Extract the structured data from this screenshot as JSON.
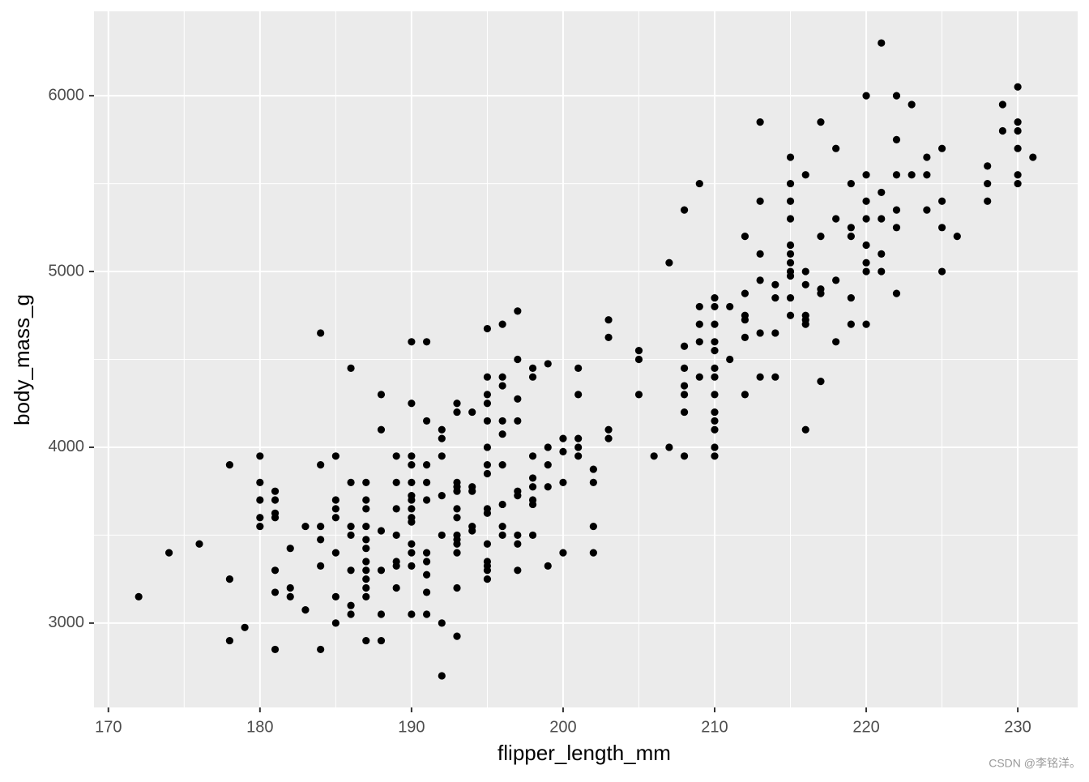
{
  "chart_data": {
    "type": "scatter",
    "x_label": "flipper_length_mm",
    "y_label": "body_mass_g",
    "xlim": [
      169.05,
      233.95
    ],
    "ylim": [
      2520,
      6480
    ],
    "xticks": [
      170,
      180,
      190,
      200,
      210,
      220,
      230
    ],
    "yticks": [
      3000,
      4000,
      5000,
      6000
    ],
    "grid": true,
    "color": "#000000",
    "panel_color": "#EBEBEB",
    "watermark": "CSDN @李铭洋。",
    "x": [
      172,
      174,
      176,
      178,
      178,
      178,
      179,
      180,
      180,
      180,
      180,
      180,
      181,
      181,
      181,
      181,
      181,
      181,
      181,
      182,
      182,
      182,
      183,
      183,
      184,
      184,
      184,
      184,
      184,
      184,
      185,
      185,
      185,
      185,
      185,
      185,
      185,
      186,
      186,
      186,
      186,
      186,
      186,
      186,
      187,
      187,
      187,
      187,
      187,
      187,
      187,
      187,
      187,
      187,
      187,
      187,
      188,
      188,
      188,
      188,
      188,
      188,
      189,
      189,
      189,
      189,
      189,
      189,
      189,
      190,
      190,
      190,
      190,
      190,
      190,
      190,
      190,
      190,
      190,
      190,
      190,
      190,
      190,
      191,
      191,
      191,
      191,
      191,
      191,
      191,
      191,
      191,
      191,
      192,
      192,
      192,
      192,
      192,
      192,
      192,
      193,
      193,
      193,
      193,
      193,
      193,
      193,
      193,
      193,
      193,
      193,
      193,
      193,
      194,
      194,
      194,
      194,
      194,
      195,
      195,
      195,
      195,
      195,
      195,
      195,
      195,
      195,
      195,
      195,
      195,
      195,
      195,
      195,
      196,
      196,
      196,
      196,
      196,
      196,
      196,
      196,
      196,
      197,
      197,
      197,
      197,
      197,
      197,
      197,
      197,
      197,
      198,
      198,
      198,
      198,
      198,
      198,
      198,
      198,
      199,
      199,
      199,
      199,
      199,
      200,
      200,
      200,
      200,
      201,
      201,
      201,
      201,
      201,
      202,
      202,
      202,
      202,
      203,
      203,
      203,
      203,
      205,
      205,
      205,
      206,
      207,
      207,
      208,
      208,
      208,
      208,
      208,
      208,
      208,
      209,
      209,
      209,
      209,
      209,
      210,
      210,
      210,
      210,
      210,
      210,
      210,
      210,
      210,
      210,
      210,
      210,
      210,
      211,
      211,
      212,
      212,
      212,
      212,
      212,
      212,
      213,
      213,
      213,
      213,
      213,
      213,
      214,
      214,
      214,
      214,
      215,
      215,
      215,
      215,
      215,
      215,
      215,
      215,
      215,
      215,
      215,
      216,
      216,
      216,
      216,
      216,
      216,
      216,
      217,
      217,
      217,
      217,
      217,
      218,
      218,
      218,
      218,
      219,
      219,
      219,
      219,
      219,
      220,
      220,
      220,
      220,
      220,
      220,
      220,
      220,
      221,
      221,
      221,
      221,
      221,
      222,
      222,
      222,
      222,
      222,
      222,
      223,
      223,
      224,
      224,
      224,
      225,
      225,
      225,
      225,
      226,
      228,
      228,
      228,
      229,
      229,
      230,
      230,
      230,
      230,
      230,
      230,
      231
    ],
    "values": [
      3150,
      3400,
      3450,
      3900,
      3250,
      2900,
      2975,
      3950,
      3800,
      3700,
      3600,
      3550,
      3750,
      3700,
      3625,
      3600,
      3300,
      3175,
      2850,
      3425,
      3200,
      3150,
      3550,
      3075,
      4650,
      3900,
      3550,
      3475,
      3325,
      2850,
      3950,
      3700,
      3650,
      3600,
      3400,
      3150,
      3000,
      4450,
      3800,
      3550,
      3500,
      3300,
      3100,
      3050,
      3800,
      3700,
      3650,
      3550,
      3475,
      3425,
      3350,
      3300,
      3250,
      3200,
      3150,
      2900,
      4300,
      4100,
      3525,
      3300,
      3050,
      2900,
      3950,
      3800,
      3650,
      3500,
      3350,
      3325,
      3200,
      4600,
      4250,
      3950,
      3900,
      3800,
      3725,
      3700,
      3650,
      3600,
      3575,
      3450,
      3400,
      3325,
      3050,
      4600,
      4150,
      3900,
      3800,
      3700,
      3400,
      3350,
      3275,
      3175,
      3050,
      4100,
      4050,
      3950,
      3725,
      3500,
      3000,
      2700,
      4250,
      4200,
      3800,
      3775,
      3750,
      3650,
      3600,
      3500,
      3475,
      3450,
      3400,
      3200,
      2925,
      4200,
      3775,
      3750,
      3550,
      3525,
      4675,
      4400,
      4300,
      4250,
      4150,
      4000,
      3900,
      3850,
      3650,
      3625,
      3450,
      3350,
      3325,
      3300,
      3250,
      4700,
      4400,
      4350,
      4150,
      4075,
      3900,
      3675,
      3550,
      3500,
      4775,
      4500,
      4275,
      4150,
      3750,
      3725,
      3500,
      3450,
      3300,
      4450,
      4400,
      3950,
      3825,
      3775,
      3700,
      3675,
      3500,
      4475,
      4000,
      3900,
      3775,
      3325,
      4050,
      3975,
      3800,
      3400,
      4450,
      4300,
      4050,
      4000,
      3950,
      3875,
      3800,
      3550,
      3400,
      4725,
      4625,
      4100,
      4050,
      4550,
      4500,
      4300,
      3950,
      5050,
      4000,
      5350,
      4575,
      4450,
      4350,
      4300,
      4200,
      3950,
      5500,
      4800,
      4700,
      4600,
      4400,
      4850,
      4800,
      4700,
      4600,
      4550,
      4450,
      4400,
      4300,
      4200,
      4150,
      4100,
      4000,
      3950,
      4800,
      4500,
      5200,
      4875,
      4750,
      4725,
      4625,
      4300,
      5850,
      5400,
      5100,
      4950,
      4650,
      4400,
      4925,
      4850,
      4650,
      4400,
      5650,
      5500,
      5400,
      5300,
      5150,
      5100,
      5050,
      5000,
      4975,
      4850,
      4750,
      5550,
      5000,
      4925,
      4750,
      4725,
      4700,
      4100,
      5850,
      5200,
      4900,
      4875,
      4375,
      5700,
      5300,
      4950,
      4600,
      5500,
      5250,
      5200,
      4850,
      4700,
      6000,
      5550,
      5400,
      5300,
      5150,
      5050,
      5000,
      4700,
      6300,
      5450,
      5300,
      5100,
      5000,
      6000,
      5750,
      5550,
      5350,
      5250,
      4875,
      5950,
      5550,
      5650,
      5550,
      5350,
      5700,
      5400,
      5250,
      5000,
      5200,
      5600,
      5500,
      5400,
      5950,
      5800,
      6050,
      5850,
      5800,
      5700,
      5550,
      5500,
      5650
    ]
  }
}
